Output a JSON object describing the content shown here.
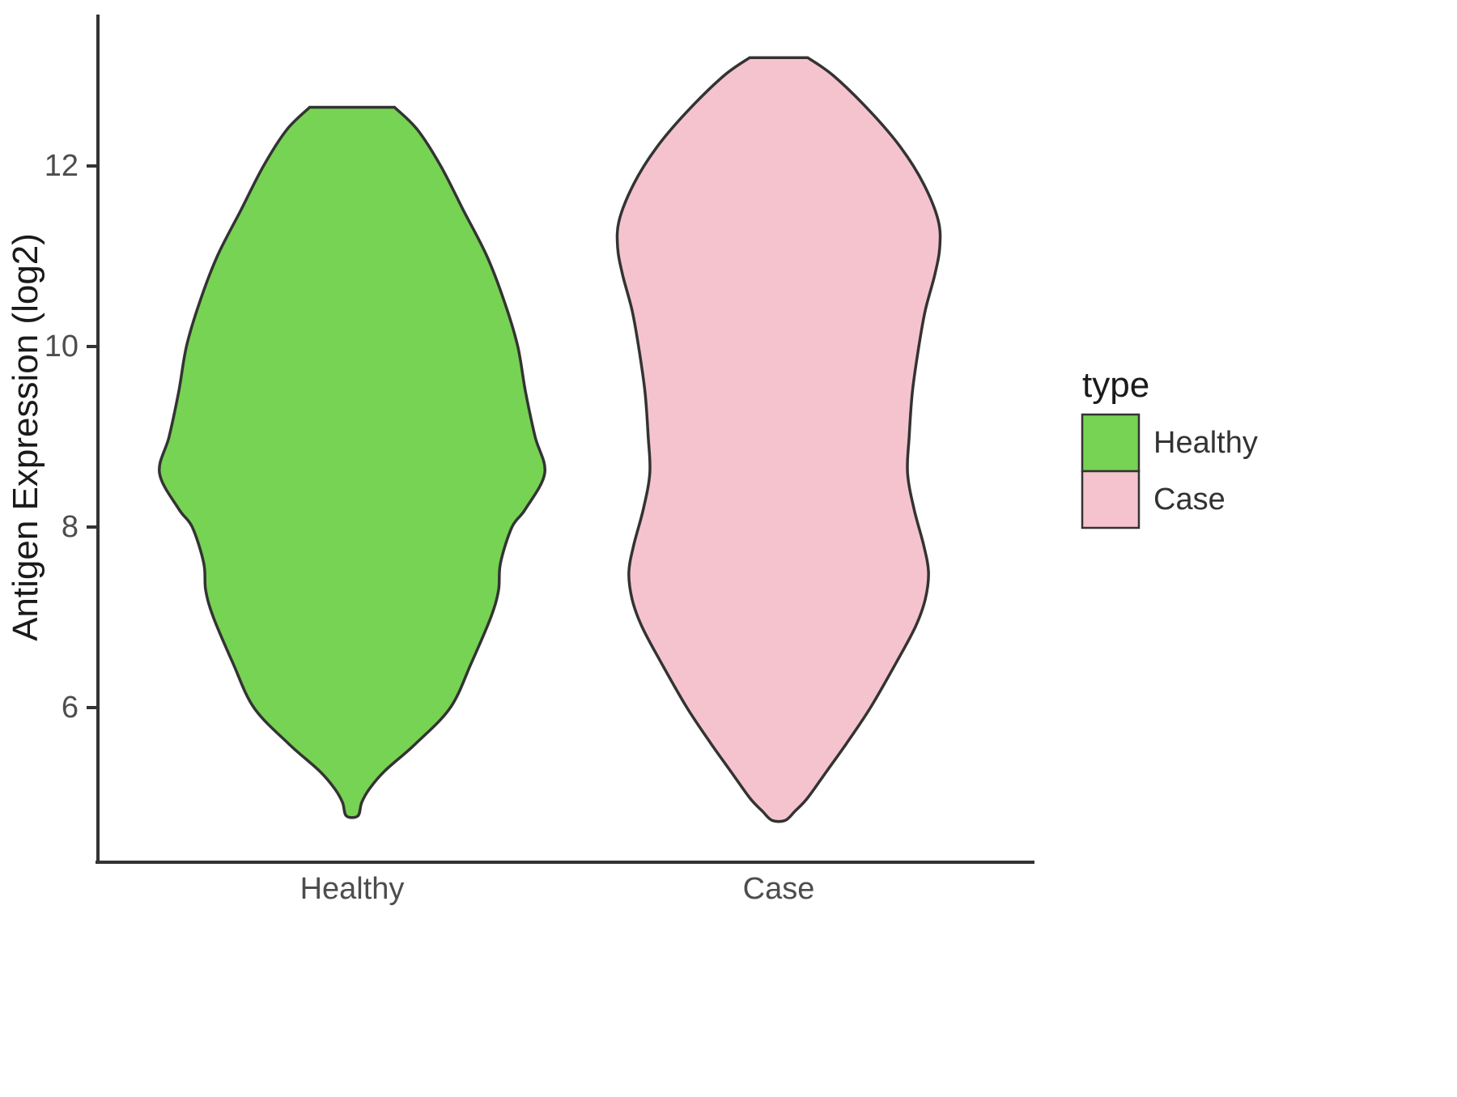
{
  "chart_data": {
    "type": "violin",
    "title": "",
    "xlabel": "",
    "ylabel": "Antigen Expression (log2)",
    "categories": [
      "Healthy",
      "Case"
    ],
    "ylim": [
      4.4,
      13.5
    ],
    "yticks": [
      6,
      8,
      10,
      12
    ],
    "grid": false,
    "axis_color": "#333333",
    "tick_label_color": "#4d4d4d",
    "legend": {
      "title": "type",
      "position": "right",
      "entries": [
        {
          "label": "Healthy",
          "color": "#77d353"
        },
        {
          "label": "Case",
          "color": "#f5c3ce"
        }
      ]
    },
    "series": [
      {
        "name": "Healthy",
        "fill": "#77d353",
        "outline": "#333333",
        "y_min": 4.8,
        "y_max": 12.65,
        "peak_value": 8.6,
        "density": [
          [
            12.65,
            0.22
          ],
          [
            12.4,
            0.34
          ],
          [
            12.0,
            0.46
          ],
          [
            11.5,
            0.58
          ],
          [
            11.0,
            0.7
          ],
          [
            10.5,
            0.79
          ],
          [
            10.0,
            0.86
          ],
          [
            9.5,
            0.9
          ],
          [
            9.0,
            0.95
          ],
          [
            8.6,
            1.0
          ],
          [
            8.2,
            0.9
          ],
          [
            8.0,
            0.83
          ],
          [
            7.6,
            0.77
          ],
          [
            7.3,
            0.76
          ],
          [
            7.0,
            0.72
          ],
          [
            6.5,
            0.62
          ],
          [
            6.0,
            0.51
          ],
          [
            5.6,
            0.33
          ],
          [
            5.3,
            0.17
          ],
          [
            5.1,
            0.09
          ],
          [
            4.95,
            0.05
          ],
          [
            4.8,
            0.03
          ]
        ]
      },
      {
        "name": "Case",
        "fill": "#f5c3ce",
        "outline": "#333333",
        "y_min": 4.75,
        "y_max": 13.2,
        "peak_value": 11.1,
        "density": [
          [
            13.2,
            0.18
          ],
          [
            13.0,
            0.34
          ],
          [
            12.6,
            0.57
          ],
          [
            12.2,
            0.76
          ],
          [
            11.8,
            0.9
          ],
          [
            11.4,
            0.99
          ],
          [
            11.1,
            1.0
          ],
          [
            10.8,
            0.97
          ],
          [
            10.4,
            0.91
          ],
          [
            10.0,
            0.87
          ],
          [
            9.5,
            0.83
          ],
          [
            9.0,
            0.81
          ],
          [
            8.6,
            0.8
          ],
          [
            8.2,
            0.84
          ],
          [
            7.8,
            0.9
          ],
          [
            7.5,
            0.93
          ],
          [
            7.2,
            0.91
          ],
          [
            6.9,
            0.85
          ],
          [
            6.5,
            0.73
          ],
          [
            6.0,
            0.57
          ],
          [
            5.6,
            0.42
          ],
          [
            5.3,
            0.3
          ],
          [
            5.0,
            0.18
          ],
          [
            4.85,
            0.1
          ],
          [
            4.75,
            0.04
          ]
        ]
      }
    ]
  }
}
